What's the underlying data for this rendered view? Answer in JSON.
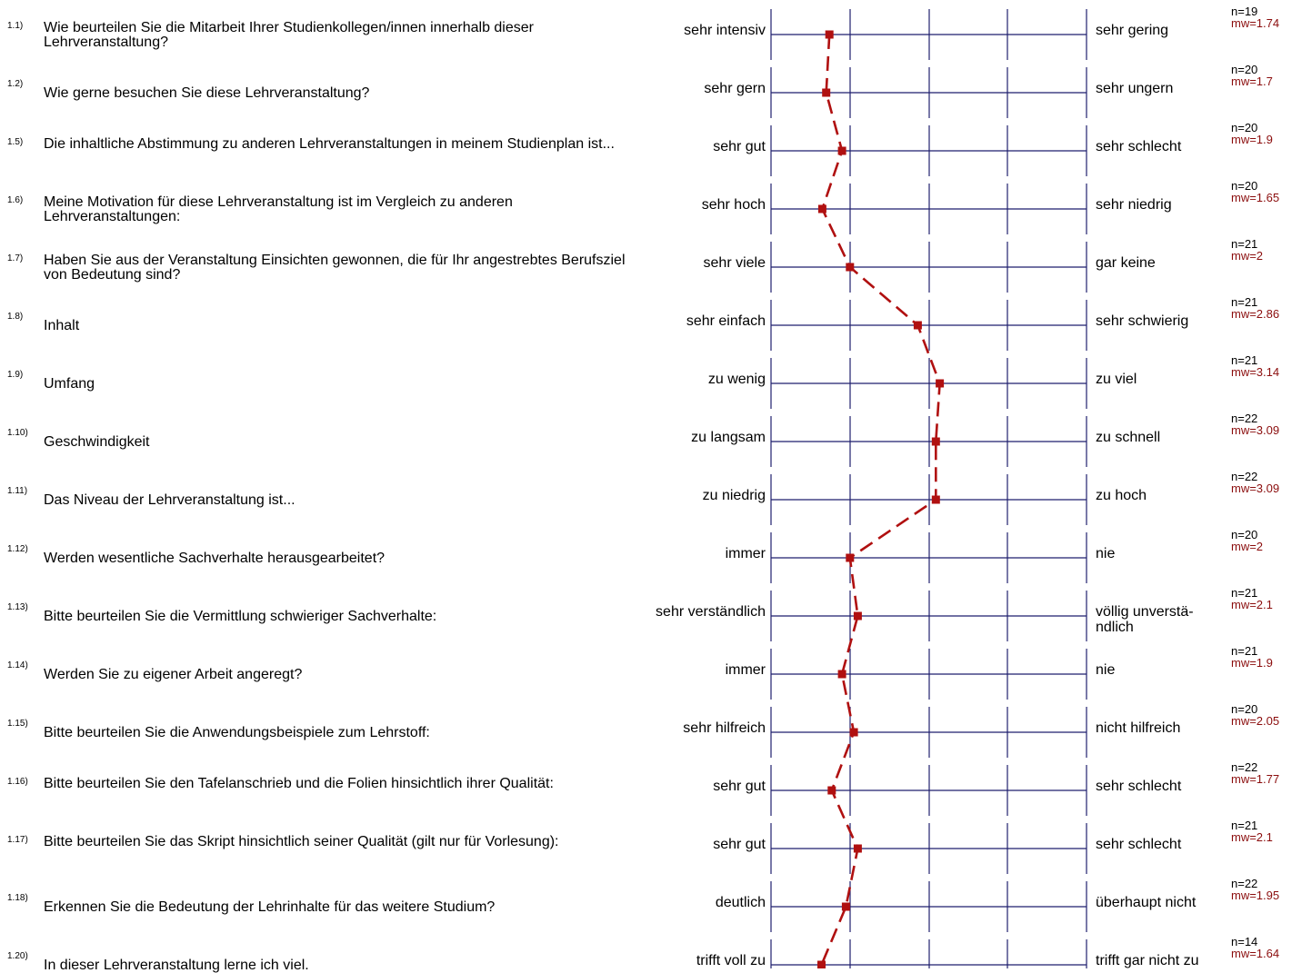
{
  "colors": {
    "axis": "#1f1f6e",
    "profile_line": "#b01010",
    "marker": "#b01010",
    "mean_text": "#8b0d0d"
  },
  "chart_data": {
    "type": "line",
    "orientation": "horizontal-profile",
    "scale": [
      1,
      5
    ],
    "rows": [
      {
        "number": "1.1)",
        "question": "Wie beurteilen Sie die Mitarbeit Ihrer Studienkollegen/innen innerhalb dieser Lehrveranstaltung?",
        "left_label": "sehr intensiv",
        "right_label": "sehr gering",
        "n": "n=19",
        "mw": "mw=1.74",
        "value": 1.74
      },
      {
        "number": "1.2)",
        "question": "Wie gerne besuchen Sie diese Lehrveranstaltung?",
        "left_label": "sehr gern",
        "right_label": "sehr ungern",
        "n": "n=20",
        "mw": "mw=1.7",
        "value": 1.7
      },
      {
        "number": "1.5)",
        "question": "Die inhaltliche Abstimmung zu anderen Lehrveranstaltungen in meinem Studienplan ist...",
        "left_label": "sehr gut",
        "right_label": "sehr schlecht",
        "n": "n=20",
        "mw": "mw=1.9",
        "value": 1.9
      },
      {
        "number": "1.6)",
        "question": "Meine Motivation für diese Lehrveranstaltung ist im Vergleich zu anderen Lehrveranstaltungen:",
        "left_label": "sehr hoch",
        "right_label": "sehr niedrig",
        "n": "n=20",
        "mw": "mw=1.65",
        "value": 1.65
      },
      {
        "number": "1.7)",
        "question": "Haben Sie aus der Veranstaltung Einsichten gewonnen, die für Ihr angestrebtes Berufsziel von Bedeutung sind?",
        "left_label": "sehr viele",
        "right_label": "gar keine",
        "n": "n=21",
        "mw": "mw=2",
        "value": 2
      },
      {
        "number": "1.8)",
        "question": "Inhalt",
        "left_label": "sehr einfach",
        "right_label": "sehr schwierig",
        "n": "n=21",
        "mw": "mw=2.86",
        "value": 2.86
      },
      {
        "number": "1.9)",
        "question": "Umfang",
        "left_label": "zu wenig",
        "right_label": "zu viel",
        "n": "n=21",
        "mw": "mw=3.14",
        "value": 3.14
      },
      {
        "number": "1.10)",
        "question": "Geschwindigkeit",
        "left_label": "zu langsam",
        "right_label": "zu schnell",
        "n": "n=22",
        "mw": "mw=3.09",
        "value": 3.09
      },
      {
        "number": "1.11)",
        "question": "Das Niveau der Lehrveranstaltung ist...",
        "left_label": "zu niedrig",
        "right_label": "zu hoch",
        "n": "n=22",
        "mw": "mw=3.09",
        "value": 3.09
      },
      {
        "number": "1.12)",
        "question": "Werden wesentliche Sachverhalte herausgearbeitet?",
        "left_label": "immer",
        "right_label": "nie",
        "n": "n=20",
        "mw": "mw=2",
        "value": 2
      },
      {
        "number": "1.13)",
        "question": "Bitte beurteilen Sie die Vermittlung schwieriger Sachverhalte:",
        "left_label": "sehr verständlich",
        "right_label": "völlig unverstä-ndlich",
        "n": "n=21",
        "mw": "mw=2.1",
        "value": 2.1
      },
      {
        "number": "1.14)",
        "question": "Werden Sie zu eigener Arbeit angeregt?",
        "left_label": "immer",
        "right_label": "nie",
        "n": "n=21",
        "mw": "mw=1.9",
        "value": 1.9
      },
      {
        "number": "1.15)",
        "question": "Bitte beurteilen Sie die Anwendungsbeispiele zum Lehrstoff:",
        "left_label": "sehr hilfreich",
        "right_label": "nicht hilfreich",
        "n": "n=20",
        "mw": "mw=2.05",
        "value": 2.05
      },
      {
        "number": "1.16)",
        "question": "Bitte beurteilen Sie den Tafelanschrieb und die Folien hinsichtlich ihrer Qualität:",
        "left_label": "sehr gut",
        "right_label": "sehr schlecht",
        "n": "n=22",
        "mw": "mw=1.77",
        "value": 1.77
      },
      {
        "number": "1.17)",
        "question": "Bitte beurteilen Sie das Skript hinsichtlich seiner Qualität (gilt nur für Vorlesung):",
        "left_label": "sehr gut",
        "right_label": "sehr schlecht",
        "n": "n=21",
        "mw": "mw=2.1",
        "value": 2.1
      },
      {
        "number": "1.18)",
        "question": "Erkennen Sie die Bedeutung der Lehrinhalte für das weitere Studium?",
        "left_label": "deutlich",
        "right_label": "überhaupt nicht",
        "n": "n=22",
        "mw": "mw=1.95",
        "value": 1.95
      },
      {
        "number": "1.20)",
        "question": "In dieser Lehrveranstaltung lerne ich viel.",
        "left_label": "trifft voll zu",
        "right_label": "trifft gar nicht zu",
        "n": "n=14",
        "mw": "mw=1.64",
        "value": 1.64
      }
    ]
  }
}
